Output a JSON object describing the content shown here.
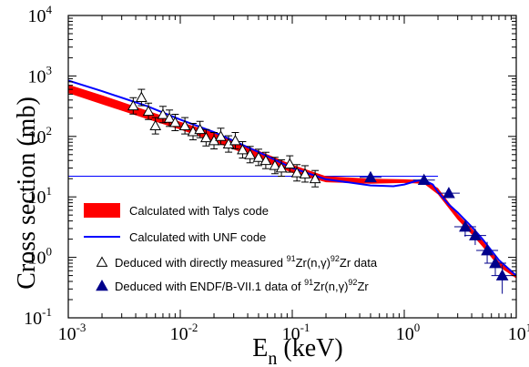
{
  "chart_data": {
    "type": "scatter",
    "x_scale": "log",
    "y_scale": "log",
    "xlim": [
      0.001,
      10
    ],
    "ylim": [
      0.1,
      10000
    ],
    "xlabel": {
      "main": "E",
      "sub": "n",
      "rest": " (keV)"
    },
    "ylabel": "Cross section (mb)",
    "x_ticks": [
      {
        "value": 0.001,
        "base": "10",
        "exp": "-3"
      },
      {
        "value": 0.01,
        "base": "10",
        "exp": "-2"
      },
      {
        "value": 0.1,
        "base": "10",
        "exp": "-1"
      },
      {
        "value": 1,
        "base": "10",
        "exp": "0"
      },
      {
        "value": 10,
        "base": "10",
        "exp": "1"
      }
    ],
    "y_ticks": [
      {
        "value": 0.1,
        "base": "10",
        "exp": "-1"
      },
      {
        "value": 1,
        "base": "10",
        "exp": "0"
      },
      {
        "value": 10,
        "base": "10",
        "exp": "1"
      },
      {
        "value": 100,
        "base": "10",
        "exp": "2"
      },
      {
        "value": 1000,
        "base": "10",
        "exp": "3"
      },
      {
        "value": 10000,
        "base": "10",
        "exp": "4"
      }
    ],
    "series": [
      {
        "name": "Calculated with Talys code",
        "kind": "band",
        "color": "#ff0000",
        "x": [
          0.001,
          0.002,
          0.005,
          0.01,
          0.02,
          0.05,
          0.1,
          0.2,
          0.5,
          1.0,
          1.5,
          2.0,
          3.0,
          4.0,
          5.0,
          7.0,
          10.0
        ],
        "upper": [
          720,
          480,
          270,
          175,
          115,
          58,
          34,
          22,
          20,
          19.5,
          19,
          14,
          5.2,
          3.0,
          1.9,
          0.85,
          0.52
        ],
        "lower": [
          520,
          340,
          195,
          130,
          82,
          42,
          25,
          17.5,
          16.5,
          17,
          16.5,
          11,
          4.2,
          2.4,
          1.5,
          0.7,
          0.45
        ]
      },
      {
        "name": "Calculated with UNF code",
        "kind": "line",
        "color": "#0000ff",
        "x": [
          0.001,
          0.002,
          0.005,
          0.01,
          0.02,
          0.05,
          0.1,
          0.2,
          0.5,
          0.8,
          1.0,
          1.3,
          1.5,
          1.8,
          2.0,
          2.5,
          3.0,
          4.0,
          5.0,
          7.0,
          10.0
        ],
        "y": [
          840,
          560,
          320,
          190,
          118,
          55,
          30,
          19.5,
          15.5,
          15,
          16,
          18.5,
          19,
          16,
          12,
          7.5,
          5.5,
          3.2,
          2.0,
          0.9,
          0.5
        ]
      },
      {
        "name": "directly",
        "kind": "open-triangle",
        "color": "#000000",
        "label_lead": "Deduced with directly  measured ",
        "label_sup1": "91",
        "label_mid": "Zr(n,",
        "label_gamma": "γ",
        "label_sup2": ")",
        "label_sup3": "92",
        "label_tail": "Zr data",
        "x": [
          0.0038,
          0.0045,
          0.0052,
          0.006,
          0.007,
          0.008,
          0.009,
          0.011,
          0.013,
          0.015,
          0.017,
          0.02,
          0.023,
          0.027,
          0.031,
          0.036,
          0.042,
          0.05,
          0.058,
          0.07,
          0.08,
          0.095,
          0.11,
          0.13,
          0.16
        ],
        "y": [
          320,
          440,
          260,
          150,
          230,
          200,
          170,
          150,
          120,
          130,
          95,
          85,
          100,
          75,
          85,
          60,
          50,
          45,
          40,
          33,
          30,
          35,
          25,
          24,
          20
        ]
      },
      {
        "name": "ENDF/B-VII.1",
        "kind": "filled-triangle",
        "color": "#00008b",
        "label_lead": "Deduced with ENDF/B-VII.1 data  of ",
        "label_sup1": "91",
        "label_mid": "Zr(n,",
        "label_gamma": "γ",
        "label_sup2": ")",
        "label_sup3": "92",
        "label_tail": "Zr",
        "x": [
          0.5,
          1.5,
          2.5,
          3.5,
          4.3,
          5.5,
          6.5,
          7.5
        ],
        "y": [
          21,
          19,
          11.5,
          3.2,
          2.3,
          1.3,
          0.8,
          0.5
        ],
        "yerr": [
          0,
          0,
          0,
          1.0,
          0.7,
          0.5,
          0.3,
          0.25
        ]
      }
    ],
    "hline": {
      "y": 22,
      "x_from": 0.001,
      "x_to": 2.0,
      "color": "#0000ff"
    }
  }
}
